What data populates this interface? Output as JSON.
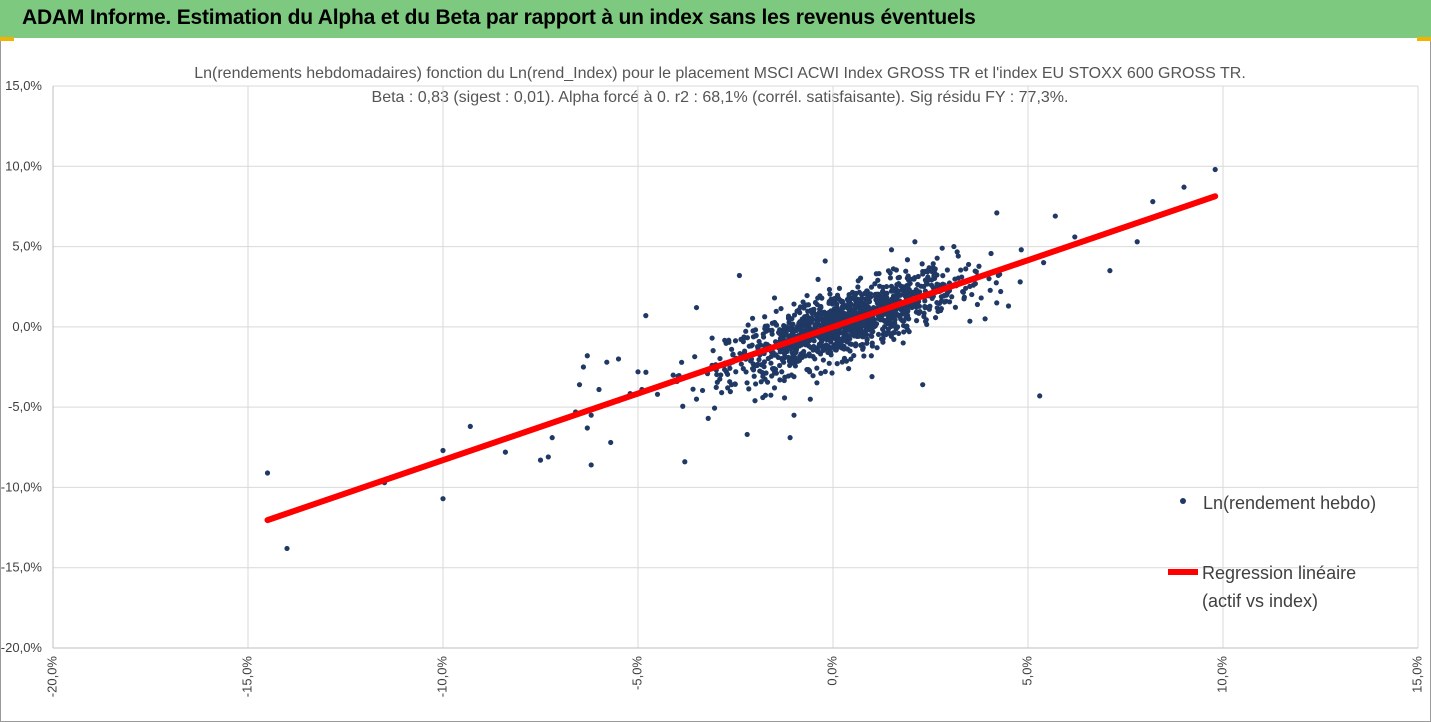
{
  "banner": {
    "title": "ADAM Informe. Estimation du Alpha et du Beta par rapport à un index sans les revenus éventuels",
    "color": "#7dc97f"
  },
  "chart_data": {
    "type": "scatter",
    "title": "Ln(rendements hebdomadaires) fonction du Ln(rend_Index) pour le placement MSCI ACWI Index GROSS TR et l'index EU STOXX 600 GROSS TR.",
    "subtitle": "Beta : 0,83 (sigest : 0,01). Alpha forcé à 0. r2 : 68,1% (corrél. satisfaisante). Sig résidu FY : 77,3%.",
    "xlabel": "",
    "ylabel": "",
    "xlim": [
      -20,
      15
    ],
    "ylim": [
      -20,
      15
    ],
    "x_ticks": [
      "-20,0%",
      "-15,0%",
      "-10,0%",
      "-5,0%",
      "0,0%",
      "5,0%",
      "10,0%",
      "15,0%"
    ],
    "y_ticks": [
      "15,0%",
      "10,0%",
      "5,0%",
      "0,0%",
      "-5,0%",
      "-10,0%",
      "-15,0%",
      "-20,0%"
    ],
    "grid": true,
    "legend_position": "right",
    "series": [
      {
        "name": "Ln(rendement hebdo)",
        "type": "scatter",
        "color": "#1f3864",
        "points": [
          [
            9.8,
            9.8
          ],
          [
            8.2,
            7.8
          ],
          [
            7.8,
            5.3
          ],
          [
            7.1,
            3.5
          ],
          [
            6.2,
            5.6
          ],
          [
            5.7,
            6.9
          ],
          [
            5.3,
            -4.3
          ],
          [
            5.4,
            4.0
          ],
          [
            4.2,
            7.1
          ],
          [
            4.8,
            2.8
          ],
          [
            4.5,
            1.3
          ],
          [
            3.9,
            0.5
          ],
          [
            3.3,
            3.1
          ],
          [
            3.1,
            5.0
          ],
          [
            2.3,
            -3.6
          ],
          [
            2.8,
            4.9
          ],
          [
            2.1,
            5.3
          ],
          [
            1.5,
            4.8
          ],
          [
            -0.2,
            4.1
          ],
          [
            -1.5,
            1.8
          ],
          [
            -2.4,
            3.2
          ],
          [
            -3.5,
            1.2
          ],
          [
            -4.8,
            0.7
          ],
          [
            -6.3,
            -1.8
          ],
          [
            -6.4,
            -2.5
          ],
          [
            -5.8,
            -2.2
          ],
          [
            -5.5,
            -2.0
          ],
          [
            -6.5,
            -3.6
          ],
          [
            -6.0,
            -3.9
          ],
          [
            -5.0,
            -2.8
          ],
          [
            -4.0,
            -3.4
          ],
          [
            -3.5,
            -4.5
          ],
          [
            -3.8,
            -8.4
          ],
          [
            -6.2,
            -8.6
          ],
          [
            -6.3,
            -6.3
          ],
          [
            -6.6,
            -5.3
          ],
          [
            -7.2,
            -6.9
          ],
          [
            -7.3,
            -8.1
          ],
          [
            -7.5,
            -8.3
          ],
          [
            -8.4,
            -7.8
          ],
          [
            -9.3,
            -6.2
          ],
          [
            -10.0,
            -7.7
          ],
          [
            -10.0,
            -10.7
          ],
          [
            -11.5,
            -9.7
          ],
          [
            -14.5,
            -9.1
          ],
          [
            -14.0,
            -13.8
          ],
          [
            -5.7,
            -7.2
          ],
          [
            -6.2,
            -5.5
          ],
          [
            -2.2,
            -6.7
          ],
          [
            -1.1,
            -6.9
          ],
          [
            -1.0,
            -5.5
          ],
          [
            -3.2,
            -5.7
          ],
          [
            -2.7,
            -3.8
          ],
          [
            -4.5,
            -4.2
          ],
          [
            -4.9,
            -3.9
          ],
          [
            -5.5,
            -4.6
          ],
          [
            -3.1,
            -2.4
          ],
          [
            -2.3,
            -2.6
          ],
          [
            -2.6,
            -1.4
          ],
          [
            -3.1,
            -0.7
          ],
          [
            -2.6,
            -3.6
          ],
          [
            -1.8,
            -4.4
          ],
          [
            -1.5,
            -3.8
          ],
          [
            -2.0,
            -4.6
          ],
          [
            -1.0,
            -3.1
          ],
          [
            -0.6,
            -2.8
          ],
          [
            1.0,
            -3.1
          ],
          [
            0.4,
            -2.6
          ],
          [
            1.8,
            -1.0
          ],
          [
            -0.6,
            -1.8
          ],
          [
            0.9,
            0.2
          ],
          [
            2.6,
            3.4
          ],
          [
            3.6,
            2.6
          ],
          [
            3.8,
            1.8
          ],
          [
            4.0,
            3.0
          ],
          [
            2.9,
            1.6
          ],
          [
            3.4,
            2.4
          ],
          [
            4.3,
            2.2
          ],
          [
            6.0,
            5.0
          ],
          [
            9.0,
            8.7
          ]
        ]
      },
      {
        "name": "Regression linéaire",
        "name_line2": "(actif vs index)",
        "type": "line",
        "color": "#ff0000",
        "slope": 0.83,
        "intercept": 0,
        "x_range": [
          -14.5,
          9.8
        ]
      }
    ]
  }
}
